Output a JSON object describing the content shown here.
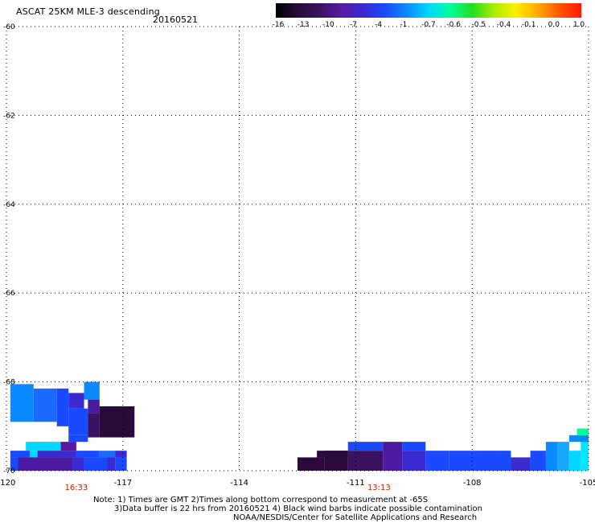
{
  "header": {
    "title": "ASCAT 25KM MLE-3 descending",
    "date": "20160521"
  },
  "colorbar": {
    "labels": [
      "-16",
      "-13",
      "-10",
      "-7",
      "-4",
      "-1",
      "-0.7",
      "-0.6",
      "-0.5",
      "-0.4",
      "-0.1",
      "0.0",
      "1.0"
    ],
    "colors": [
      "#000000",
      "#2a0a3a",
      "#3a1260",
      "#5a1aa0",
      "#3a2ad0",
      "#1a4aff",
      "#0a8aff",
      "#00d8ff",
      "#00ff9a",
      "#22dd22",
      "#aaee00",
      "#ffee00",
      "#ffaa00",
      "#ff5500",
      "#ff1a00"
    ]
  },
  "chart_data": {
    "type": "heatmap",
    "x_ticks": [
      "-120",
      "-117",
      "-114",
      "-111",
      "-108",
      "-105"
    ],
    "y_ticks": [
      "-60",
      "-62",
      "-64",
      "-66",
      "-68",
      "-70"
    ],
    "xlim": [
      -120,
      -105
    ],
    "ylim": [
      -60,
      -70
    ],
    "grid": true,
    "time_labels": [
      {
        "text": "16:33",
        "lon": -118.2
      },
      {
        "text": "13:13",
        "lon": -110.4
      }
    ],
    "cells": [
      {
        "lon0": -119.9,
        "lon1": -119.3,
        "lat0": -68.05,
        "lat1": -68.9,
        "color": "#0a8aff"
      },
      {
        "lon0": -119.3,
        "lon1": -118.7,
        "lat0": -68.15,
        "lat1": -68.9,
        "color": "#1a6aff"
      },
      {
        "lon0": -118.7,
        "lon1": -118.4,
        "lat0": -68.15,
        "lat1": -69.0,
        "color": "#1a4aff"
      },
      {
        "lon0": -118.4,
        "lon1": -118.0,
        "lat0": -68.25,
        "lat1": -68.6,
        "color": "#3a2ad0"
      },
      {
        "lon0": -118.0,
        "lon1": -117.6,
        "lat0": -68.0,
        "lat1": -68.4,
        "color": "#0a8aff"
      },
      {
        "lon0": -118.4,
        "lon1": -117.9,
        "lat0": -68.6,
        "lat1": -69.2,
        "color": "#1a4aff"
      },
      {
        "lon0": -117.9,
        "lon1": -117.6,
        "lat0": -68.4,
        "lat1": -68.7,
        "color": "#4a1aa0"
      },
      {
        "lon0": -117.6,
        "lon1": -116.7,
        "lat0": -68.55,
        "lat1": -69.25,
        "color": "#2a0a3a"
      },
      {
        "lon0": -117.9,
        "lon1": -117.6,
        "lat0": -68.7,
        "lat1": -69.25,
        "color": "#3a1260"
      },
      {
        "lon0": -118.4,
        "lon1": -117.9,
        "lat0": -69.2,
        "lat1": -69.35,
        "color": "#1a4aff"
      },
      {
        "lon0": -119.5,
        "lon1": -118.6,
        "lat0": -69.35,
        "lat1": -69.55,
        "color": "#00d8ff"
      },
      {
        "lon0": -118.6,
        "lon1": -118.2,
        "lat0": -69.35,
        "lat1": -69.55,
        "color": "#5a1aa0"
      },
      {
        "lon0": -119.9,
        "lon1": -119.4,
        "lat0": -69.55,
        "lat1": -69.7,
        "color": "#1a4aff"
      },
      {
        "lon0": -119.4,
        "lon1": -119.2,
        "lat0": -69.55,
        "lat1": -69.7,
        "color": "#00d8ff"
      },
      {
        "lon0": -119.2,
        "lon1": -118.2,
        "lat0": -69.55,
        "lat1": -69.7,
        "color": "#3a2ad0"
      },
      {
        "lon0": -118.2,
        "lon1": -117.6,
        "lat0": -69.55,
        "lat1": -69.7,
        "color": "#1a4aff"
      },
      {
        "lon0": -117.6,
        "lon1": -117.2,
        "lat0": -69.55,
        "lat1": -69.7,
        "color": "#1a6aff"
      },
      {
        "lon0": -117.2,
        "lon1": -116.9,
        "lat0": -69.55,
        "lat1": -69.7,
        "color": "#3a2ad0"
      },
      {
        "lon0": -119.9,
        "lon1": -119.7,
        "lat0": -69.7,
        "lat1": -70.0,
        "color": "#1a4aff"
      },
      {
        "lon0": -119.7,
        "lon1": -118.3,
        "lat0": -69.7,
        "lat1": -70.0,
        "color": "#4a1aa0"
      },
      {
        "lon0": -118.3,
        "lon1": -118.0,
        "lat0": -69.7,
        "lat1": -70.0,
        "color": "#3a2ad0"
      },
      {
        "lon0": -118.0,
        "lon1": -117.4,
        "lat0": -69.7,
        "lat1": -70.0,
        "color": "#1a4aff"
      },
      {
        "lon0": -117.4,
        "lon1": -117.2,
        "lat0": -69.7,
        "lat1": -70.0,
        "color": "#3a2ad0"
      },
      {
        "lon0": -117.2,
        "lon1": -116.9,
        "lat0": -69.7,
        "lat1": -70.0,
        "color": "#1a4aff"
      },
      {
        "lon0": -112.5,
        "lon1": -111.8,
        "lat0": -69.7,
        "lat1": -70.0,
        "color": "#2a0a3a"
      },
      {
        "lon0": -111.8,
        "lon1": -111.2,
        "lat0": -69.55,
        "lat1": -70.0,
        "color": "#2a0a3a"
      },
      {
        "lon0": -112.0,
        "lon1": -111.2,
        "lat0": -69.55,
        "lat1": -69.7,
        "color": "#2a0a3a"
      },
      {
        "lon0": -111.2,
        "lon1": -110.3,
        "lat0": -69.55,
        "lat1": -70.0,
        "color": "#3a1260"
      },
      {
        "lon0": -111.2,
        "lon1": -110.3,
        "lat0": -69.35,
        "lat1": -69.55,
        "color": "#1a4aff"
      },
      {
        "lon0": -110.3,
        "lon1": -109.8,
        "lat0": -69.35,
        "lat1": -70.0,
        "color": "#4a1aa0"
      },
      {
        "lon0": -109.8,
        "lon1": -109.2,
        "lat0": -69.35,
        "lat1": -69.55,
        "color": "#1a4aff"
      },
      {
        "lon0": -109.8,
        "lon1": -109.2,
        "lat0": -69.55,
        "lat1": -70.0,
        "color": "#3a2ad0"
      },
      {
        "lon0": -109.2,
        "lon1": -108.6,
        "lat0": -69.55,
        "lat1": -70.0,
        "color": "#1a4aff"
      },
      {
        "lon0": -108.6,
        "lon1": -107.0,
        "lat0": -69.55,
        "lat1": -70.0,
        "color": "#1a4aff"
      },
      {
        "lon0": -107.0,
        "lon1": -106.5,
        "lat0": -69.7,
        "lat1": -70.0,
        "color": "#3a2ad0"
      },
      {
        "lon0": -106.5,
        "lon1": -106.1,
        "lat0": -69.55,
        "lat1": -70.0,
        "color": "#1a4aff"
      },
      {
        "lon0": -106.1,
        "lon1": -105.8,
        "lat0": -69.35,
        "lat1": -70.0,
        "color": "#0a8aff"
      },
      {
        "lon0": -105.8,
        "lon1": -105.5,
        "lat0": -69.35,
        "lat1": -70.0,
        "color": "#1aa8ff"
      },
      {
        "lon0": -105.5,
        "lon1": -105.2,
        "lat0": -69.55,
        "lat1": -70.0,
        "color": "#00d8ff"
      },
      {
        "lon0": -105.2,
        "lon1": -105.0,
        "lat0": -69.2,
        "lat1": -70.0,
        "color": "#00e8ff"
      },
      {
        "lon0": -105.5,
        "lon1": -105.0,
        "lat0": -69.2,
        "lat1": -69.35,
        "color": "#0a8aff"
      },
      {
        "lon0": -105.3,
        "lon1": -105.0,
        "lat0": -69.05,
        "lat1": -69.2,
        "color": "#00ff9a"
      }
    ]
  },
  "notes": {
    "line1": "Note: 1) Times are GMT 2)Times along bottom correspond to measurement at -65S",
    "line2": "3)Data buffer is 22 hrs from 20160521 4) Black wind barbs indicate possible contamination",
    "line3": "NOAA/NESDIS/Center for Satellite Applications and Research"
  }
}
